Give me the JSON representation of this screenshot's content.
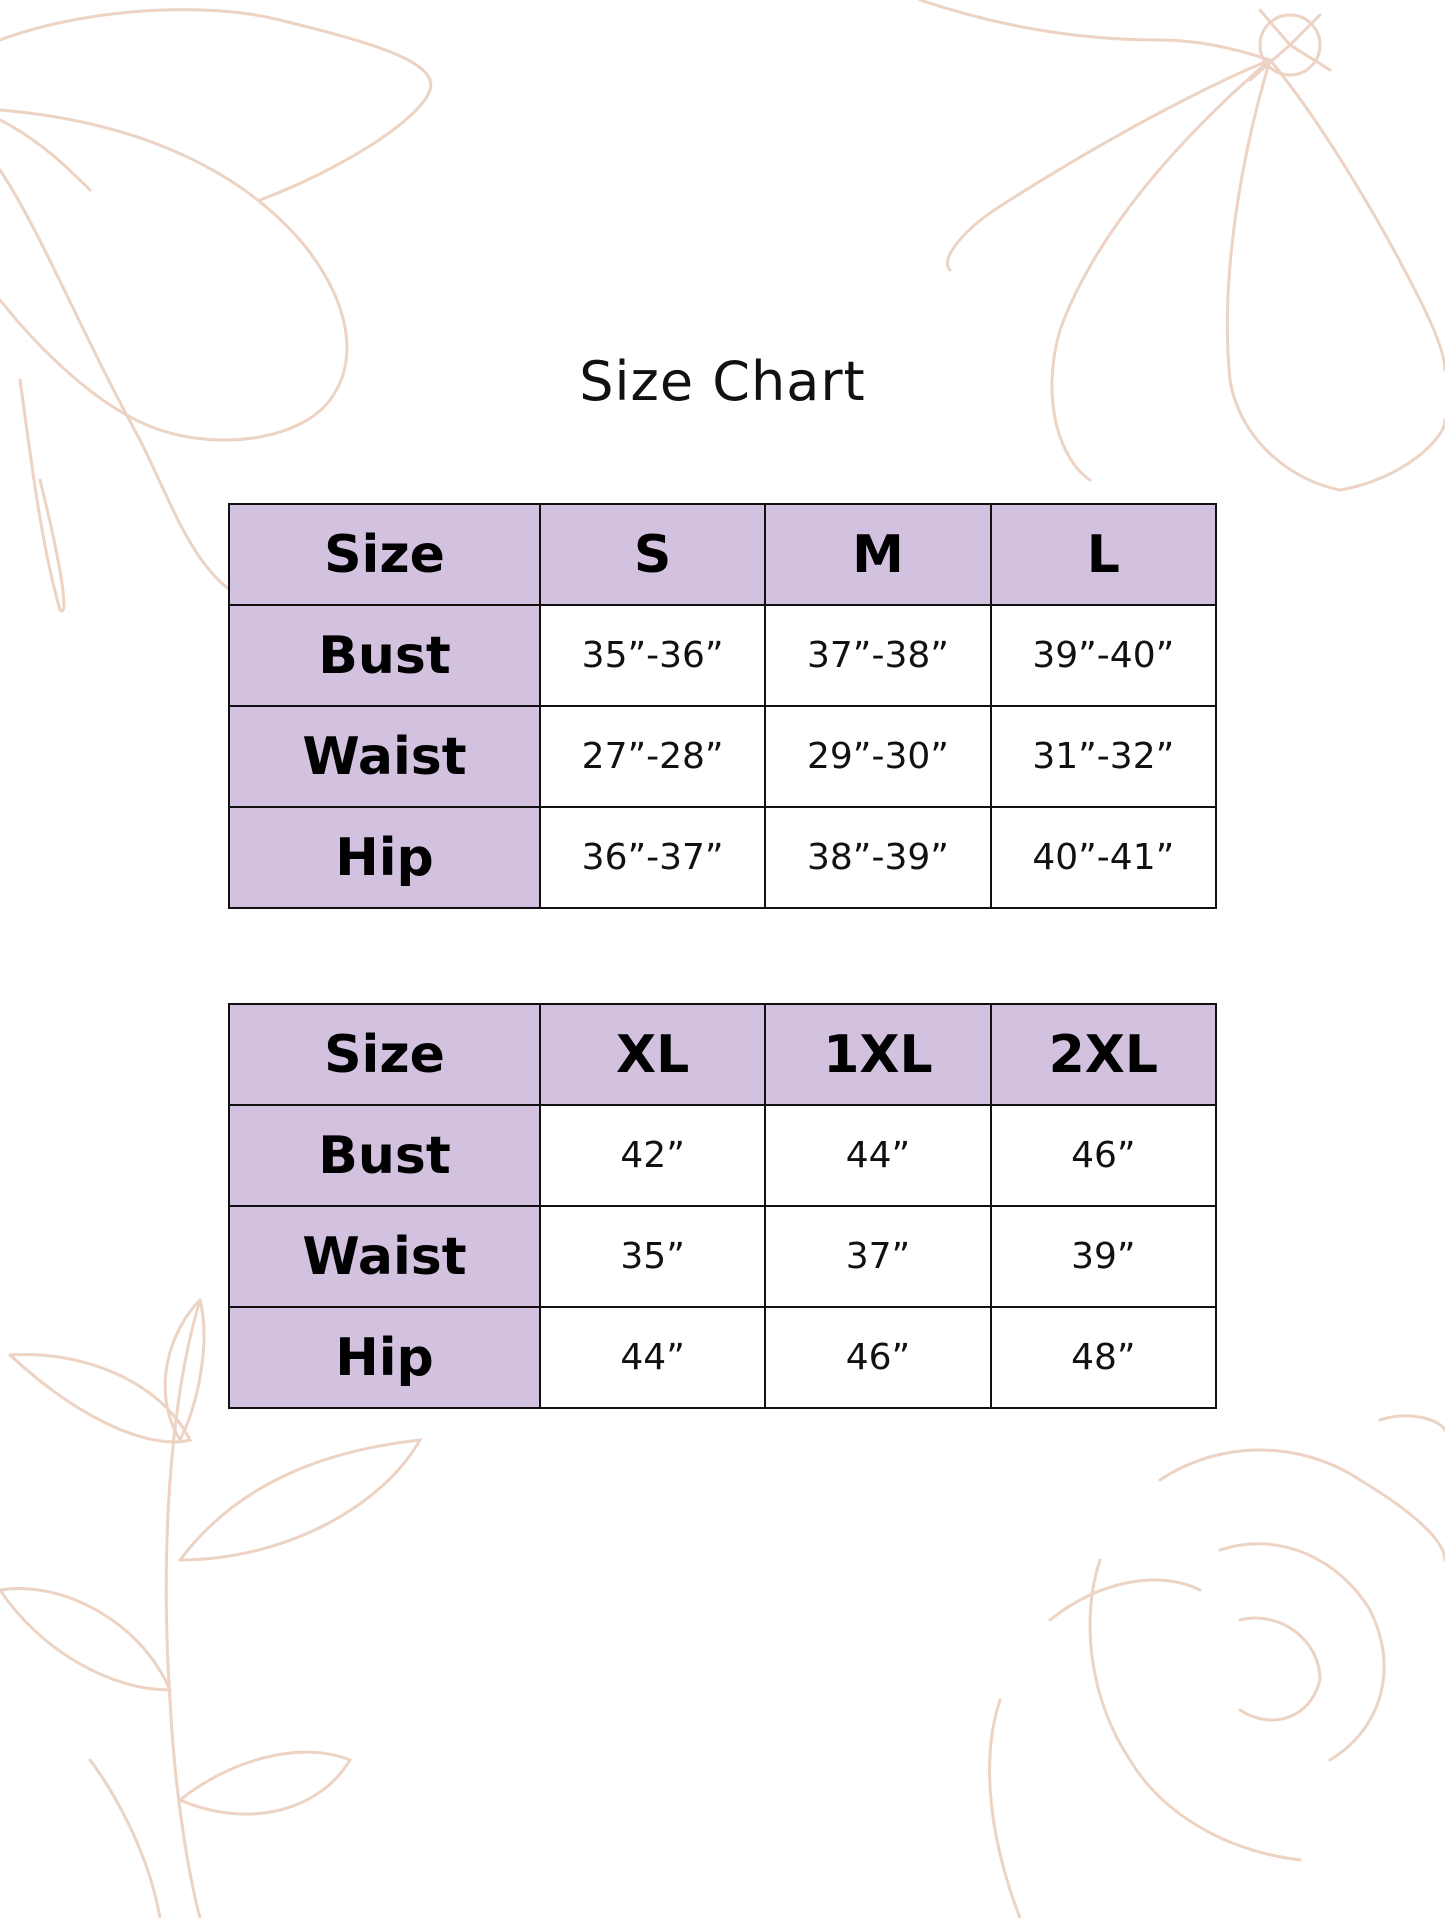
{
  "title": "Size Chart",
  "colors": {
    "header_fill": "#d2c2e0",
    "floral_line": "#ecd3c3",
    "border": "#111111"
  },
  "tables": [
    {
      "header": [
        "Size",
        "S",
        "M",
        "L"
      ],
      "rows": [
        {
          "label": "Bust",
          "values": [
            "35”-36”",
            "37”-38”",
            "39”-40”"
          ]
        },
        {
          "label": "Waist",
          "values": [
            "27”-28”",
            "29”-30”",
            "31”-32”"
          ]
        },
        {
          "label": "Hip",
          "values": [
            "36”-37”",
            "38”-39”",
            "40”-41”"
          ]
        }
      ]
    },
    {
      "header": [
        "Size",
        "XL",
        "1XL",
        "2XL"
      ],
      "rows": [
        {
          "label": "Bust",
          "values": [
            "42”",
            "44”",
            "46”"
          ]
        },
        {
          "label": "Waist",
          "values": [
            "35”",
            "37”",
            "39”"
          ]
        },
        {
          "label": "Hip",
          "values": [
            "44”",
            "46”",
            "48”"
          ]
        }
      ]
    }
  ]
}
